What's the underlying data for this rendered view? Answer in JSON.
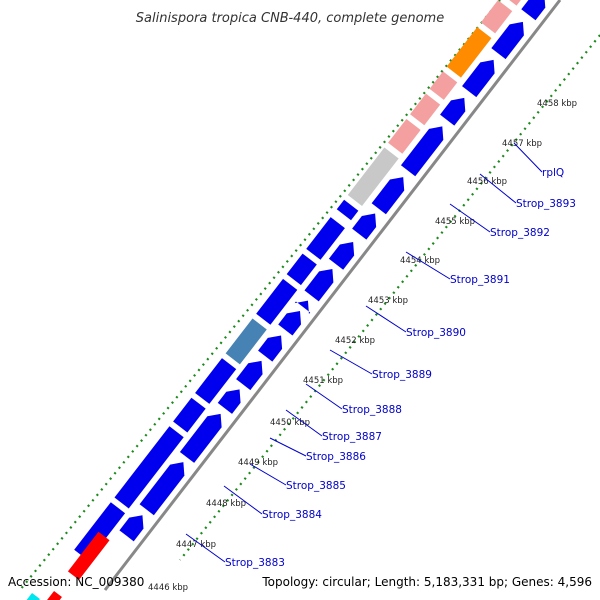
{
  "title": "Salinispora tropica CNB-440, complete genome",
  "footer": {
    "accession": "Accession: NC_009380",
    "summary": "Topology: circular; Length: 5,183,331 bp; Genes: 4,596"
  },
  "ticks": [
    "4446 kbp",
    "4447 kbp",
    "4448 kbp",
    "4449 kbp",
    "4450 kbp",
    "4451 kbp",
    "4452 kbp",
    "4453 kbp",
    "4454 kbp",
    "4455 kbp",
    "4456 kbp",
    "4457 kbp",
    "4458 kbp"
  ],
  "genes": [
    "Strop_3883",
    "Strop_3884",
    "Strop_3885",
    "Strop_3886",
    "Strop_3887",
    "Strop_3888",
    "Strop_3889",
    "Strop_3890",
    "Strop_3891",
    "Strop_3892",
    "Strop_3893",
    "rplQ"
  ],
  "colors": {
    "cds": "#0000ee",
    "cds_highlight": "#4682b4",
    "pink": "#f4a0a0",
    "grey": "#c8c8c8",
    "orange": "#ff8c00",
    "red": "#ff0000",
    "cyan": "#00e5ee",
    "dots": "#1a8a1a",
    "backbone": "#888888",
    "label": "#0000cc"
  }
}
